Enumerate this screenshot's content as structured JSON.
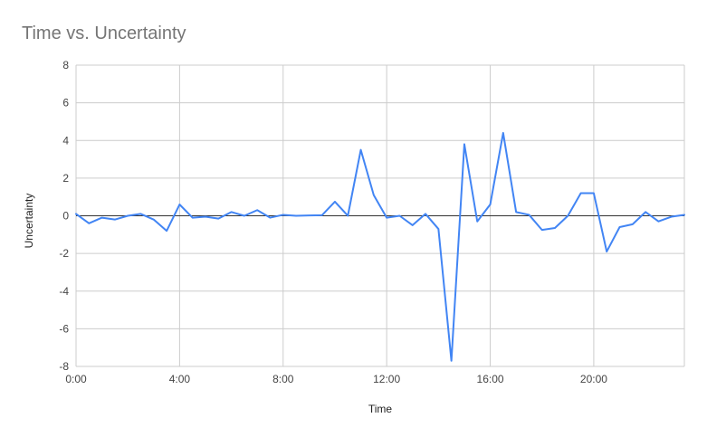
{
  "chart_data": {
    "type": "line",
    "title": "Time vs. Uncertainty",
    "xlabel": "Time",
    "ylabel": "Uncertainty",
    "xlim": [
      0,
      23.5
    ],
    "ylim": [
      -8,
      8
    ],
    "x_ticks": [
      {
        "value": 0,
        "label": "0:00"
      },
      {
        "value": 4,
        "label": "4:00"
      },
      {
        "value": 8,
        "label": "8:00"
      },
      {
        "value": 12,
        "label": "12:00"
      },
      {
        "value": 16,
        "label": "16:00"
      },
      {
        "value": 20,
        "label": "20:00"
      }
    ],
    "y_ticks": [
      {
        "value": 8,
        "label": "8"
      },
      {
        "value": 6,
        "label": "6"
      },
      {
        "value": 4,
        "label": "4"
      },
      {
        "value": 2,
        "label": "2"
      },
      {
        "value": 0,
        "label": "0"
      },
      {
        "value": -2,
        "label": "-2"
      },
      {
        "value": -4,
        "label": "-4"
      },
      {
        "value": -6,
        "label": "-6"
      },
      {
        "value": -8,
        "label": "-8"
      }
    ],
    "grid": true,
    "legend": "none",
    "colors": {
      "line": "#4285f4",
      "grid": "#cccccc",
      "zero_line": "#333333"
    },
    "x": [
      "0:00",
      "0:30",
      "1:00",
      "1:30",
      "2:00",
      "2:30",
      "3:00",
      "3:30",
      "4:00",
      "4:30",
      "5:00",
      "5:30",
      "6:00",
      "6:30",
      "7:00",
      "7:30",
      "8:00",
      "8:30",
      "9:00",
      "9:30",
      "10:00",
      "10:30",
      "11:00",
      "11:30",
      "12:00",
      "12:30",
      "13:00",
      "13:30",
      "14:00",
      "14:30",
      "15:00",
      "15:30",
      "16:00",
      "16:30",
      "17:00",
      "17:30",
      "18:00",
      "18:30",
      "19:00",
      "19:30",
      "20:00",
      "20:30",
      "21:00",
      "21:30",
      "22:00",
      "22:30",
      "23:00",
      "23:30"
    ],
    "x_hours": [
      0,
      0.5,
      1,
      1.5,
      2,
      2.5,
      3,
      3.5,
      4,
      4.5,
      5,
      5.5,
      6,
      6.5,
      7,
      7.5,
      8,
      8.5,
      9,
      9.5,
      10,
      10.5,
      11,
      11.5,
      12,
      12.5,
      13,
      13.5,
      14,
      14.5,
      15,
      15.5,
      16,
      16.5,
      17,
      17.5,
      18,
      18.5,
      19,
      19.5,
      20,
      20.5,
      21,
      21.5,
      22,
      22.5,
      23,
      23.5
    ],
    "values": [
      0.1,
      -0.4,
      -0.1,
      -0.2,
      0.0,
      0.1,
      -0.2,
      -0.8,
      0.6,
      -0.1,
      -0.05,
      -0.15,
      0.2,
      0.0,
      0.3,
      -0.1,
      0.05,
      0.0,
      0.02,
      0.03,
      0.75,
      0.0,
      3.5,
      1.1,
      -0.1,
      0.0,
      -0.5,
      0.1,
      -0.7,
      -7.7,
      3.8,
      -0.3,
      0.6,
      4.4,
      0.2,
      0.05,
      -0.75,
      -0.65,
      0.0,
      1.2,
      1.2,
      -1.9,
      -0.6,
      -0.45,
      0.2,
      -0.3,
      -0.05,
      0.05
    ]
  }
}
